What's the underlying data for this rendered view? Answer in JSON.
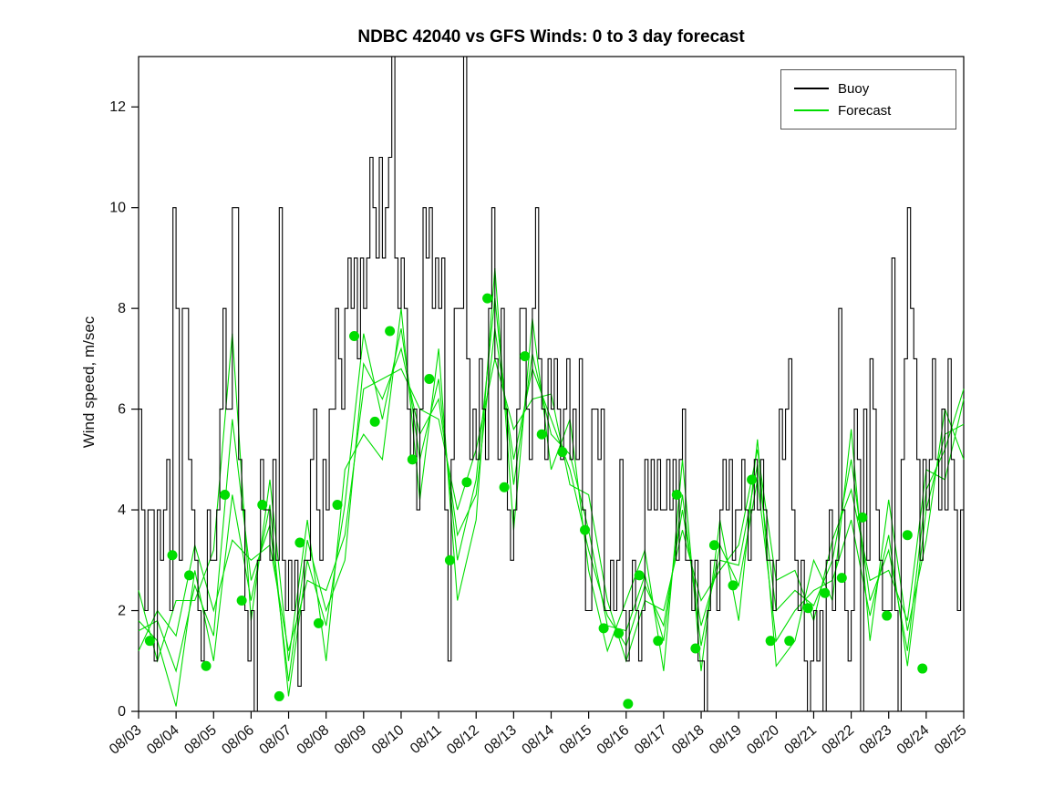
{
  "chart_data": {
    "type": "line",
    "title": "NDBC 42040 vs GFS Winds: 0 to 3 day forecast",
    "xlabel": "",
    "ylabel": "Wind speed, m/sec",
    "ylim": [
      0,
      13
    ],
    "yticks": [
      0,
      2,
      4,
      6,
      8,
      10,
      12
    ],
    "xlim_days": [
      0,
      22
    ],
    "xtick_labels": [
      "08/03",
      "08/04",
      "08/05",
      "08/06",
      "08/07",
      "08/08",
      "08/09",
      "08/10",
      "08/11",
      "08/12",
      "08/13",
      "08/14",
      "08/15",
      "08/16",
      "08/17",
      "08/18",
      "08/19",
      "08/20",
      "08/21",
      "08/22",
      "08/23",
      "08/24",
      "08/25"
    ],
    "grid": false,
    "legend": {
      "position": "top-right",
      "entries": [
        {
          "label": "Buoy",
          "color": "#000000"
        },
        {
          "label": "Forecast",
          "color": "#00dd00"
        }
      ]
    },
    "colors": {
      "buoy": "#000000",
      "forecast": "#00dd00",
      "axis": "#000000",
      "background": "#ffffff"
    },
    "buoy": {
      "name": "Buoy",
      "start_day": 0,
      "dx_days": 0.0833333,
      "values": [
        6,
        4,
        2,
        4,
        4,
        1,
        4,
        3,
        4,
        5,
        2,
        10,
        8,
        3,
        8,
        8,
        5,
        4,
        3,
        2,
        1,
        2,
        4,
        3,
        3,
        4,
        6,
        8,
        6,
        6,
        10,
        10,
        5,
        4,
        2,
        1,
        2,
        0,
        3,
        5,
        4,
        4,
        3,
        5,
        3,
        10,
        3,
        2,
        3,
        2,
        3,
        0.5,
        2,
        3,
        3,
        5,
        6,
        4,
        3,
        5,
        4,
        6,
        6,
        8,
        7,
        6,
        8,
        9,
        8,
        9,
        7,
        9,
        8,
        9,
        11,
        10,
        9,
        11,
        9,
        10,
        11,
        13,
        9,
        8,
        9,
        8,
        6,
        5,
        6,
        4,
        6,
        10,
        9,
        10,
        8,
        9,
        8,
        9,
        4,
        1,
        5,
        8,
        8,
        8,
        13,
        7,
        5,
        6,
        5,
        7,
        6,
        5,
        8,
        10,
        7,
        5,
        8,
        6,
        4,
        3,
        4,
        6,
        8,
        8,
        6,
        5,
        8,
        10,
        7,
        6,
        5,
        7,
        6,
        7,
        6,
        5,
        6,
        7,
        5,
        6,
        5,
        7,
        4,
        2,
        2,
        6,
        6,
        5,
        6,
        2,
        2,
        3,
        2,
        3,
        5,
        2,
        1,
        2,
        3,
        2,
        1,
        2,
        5,
        4,
        5,
        4,
        5,
        4,
        4,
        5,
        4,
        5,
        3,
        5,
        6,
        3,
        3,
        2,
        3,
        1,
        1,
        0,
        2,
        3,
        3,
        2,
        4,
        5,
        4,
        5,
        3,
        4,
        4,
        5,
        4,
        3,
        4,
        5,
        4,
        5,
        4,
        3,
        3,
        2,
        3,
        6,
        5,
        6,
        7,
        4,
        3,
        2,
        3,
        1,
        0,
        1,
        2,
        1,
        2,
        0,
        3,
        4,
        2,
        3,
        8,
        4,
        2,
        1,
        2,
        6,
        5,
        0,
        6,
        3,
        7,
        6,
        4,
        3,
        2,
        2,
        2,
        9,
        2,
        0,
        5,
        7,
        10,
        8,
        7,
        5,
        3,
        5,
        4,
        5,
        7,
        5,
        4,
        6,
        4,
        7,
        5,
        4,
        2,
        4
      ]
    },
    "forecast_series": [
      {
        "name": "Forecast run 1",
        "start_day": 0,
        "dx_days": 0.5,
        "values": [
          1.8,
          1.4,
          0.1,
          2.8,
          1.0,
          4.3,
          2.2,
          4.1,
          0.3,
          3.0,
          1.7,
          4.1,
          7.5,
          5.8,
          7.6,
          5.0,
          6.6,
          3.0,
          4.6,
          8.2,
          4.5,
          7.1,
          5.5,
          5.1,
          3.6,
          1.7,
          1.6,
          2.7,
          1.4,
          4.3,
          1.3,
          3.3,
          2.5,
          4.6,
          1.4,
          2.0,
          2.4,
          2.6,
          3.8,
          1.9,
          3.5,
          0.9,
          4.0,
          5.5,
          5.7
        ]
      },
      {
        "name": "Forecast run 2",
        "start_day": 0,
        "dx_days": 0.5,
        "values": [
          1.2,
          2.0,
          1.5,
          3.3,
          2.0,
          3.4,
          3.0,
          3.3,
          1.2,
          2.6,
          2.4,
          3.5,
          6.4,
          6.6,
          6.8,
          6.0,
          5.8,
          4.0,
          5.2,
          7.0,
          5.6,
          6.2,
          6.3,
          4.5,
          4.3,
          2.2,
          1.0,
          2.2,
          2.0,
          3.6,
          2.2,
          2.8,
          3.3,
          5.2,
          2.6,
          2.8,
          1.8,
          3.4,
          4.4,
          2.6,
          2.8,
          1.8,
          4.8,
          4.6,
          6.2
        ]
      },
      {
        "name": "Forecast run 3",
        "start_day": 0,
        "dx_days": 0.5,
        "values": [
          2.4,
          1.0,
          2.2,
          2.2,
          3.2,
          7.5,
          1.8,
          4.6,
          1.0,
          3.8,
          1.0,
          4.8,
          5.5,
          5.0,
          8.0,
          4.2,
          7.2,
          2.2,
          3.8,
          8.8,
          3.6,
          7.8,
          4.8,
          5.8,
          2.8,
          1.2,
          2.2,
          3.2,
          0.8,
          5.0,
          0.8,
          3.8,
          1.8,
          5.4,
          0.9,
          1.4,
          3.0,
          2.2,
          5.6,
          1.4,
          4.2,
          1.6,
          3.4,
          6.0,
          5.0
        ]
      },
      {
        "name": "Forecast run 4",
        "start_day": 0,
        "dx_days": 0.5,
        "values": [
          1.6,
          1.8,
          0.8,
          2.5,
          1.5,
          5.8,
          2.6,
          3.7,
          0.6,
          3.4,
          2.0,
          3.0,
          6.9,
          6.2,
          7.2,
          5.5,
          6.2,
          3.5,
          4.3,
          7.6,
          5.0,
          6.8,
          5.8,
          4.8,
          3.2,
          1.9,
          1.3,
          2.5,
          1.7,
          4.0,
          1.7,
          3.0,
          2.9,
          4.9,
          2.0,
          2.4,
          2.1,
          3.0,
          5.0,
          2.2,
          3.2,
          1.2,
          4.4,
          5.2,
          6.4
        ]
      }
    ],
    "forecast_markers": [
      [
        0.3,
        1.4
      ],
      [
        0.9,
        3.1
      ],
      [
        1.35,
        2.7
      ],
      [
        1.8,
        0.9
      ],
      [
        2.3,
        4.3
      ],
      [
        2.75,
        2.2
      ],
      [
        3.3,
        4.1
      ],
      [
        3.75,
        0.3
      ],
      [
        4.3,
        3.35
      ],
      [
        4.8,
        1.75
      ],
      [
        5.3,
        4.1
      ],
      [
        5.75,
        7.45
      ],
      [
        6.3,
        5.75
      ],
      [
        6.7,
        7.55
      ],
      [
        7.3,
        5.0
      ],
      [
        7.75,
        6.6
      ],
      [
        8.3,
        3.0
      ],
      [
        8.75,
        4.55
      ],
      [
        9.3,
        8.2
      ],
      [
        9.75,
        4.45
      ],
      [
        10.3,
        7.05
      ],
      [
        10.75,
        5.5
      ],
      [
        11.3,
        5.15
      ],
      [
        11.9,
        3.6
      ],
      [
        12.4,
        1.65
      ],
      [
        12.8,
        1.55
      ],
      [
        13.05,
        0.15
      ],
      [
        13.35,
        2.7
      ],
      [
        13.85,
        1.4
      ],
      [
        14.35,
        4.3
      ],
      [
        14.85,
        1.25
      ],
      [
        15.35,
        3.3
      ],
      [
        15.85,
        2.5
      ],
      [
        16.35,
        4.6
      ],
      [
        16.85,
        1.4
      ],
      [
        17.35,
        1.4
      ],
      [
        17.85,
        2.05
      ],
      [
        18.3,
        2.35
      ],
      [
        18.75,
        2.65
      ],
      [
        19.3,
        3.85
      ],
      [
        19.95,
        1.9
      ],
      [
        20.5,
        3.5
      ],
      [
        20.9,
        0.85
      ]
    ]
  }
}
